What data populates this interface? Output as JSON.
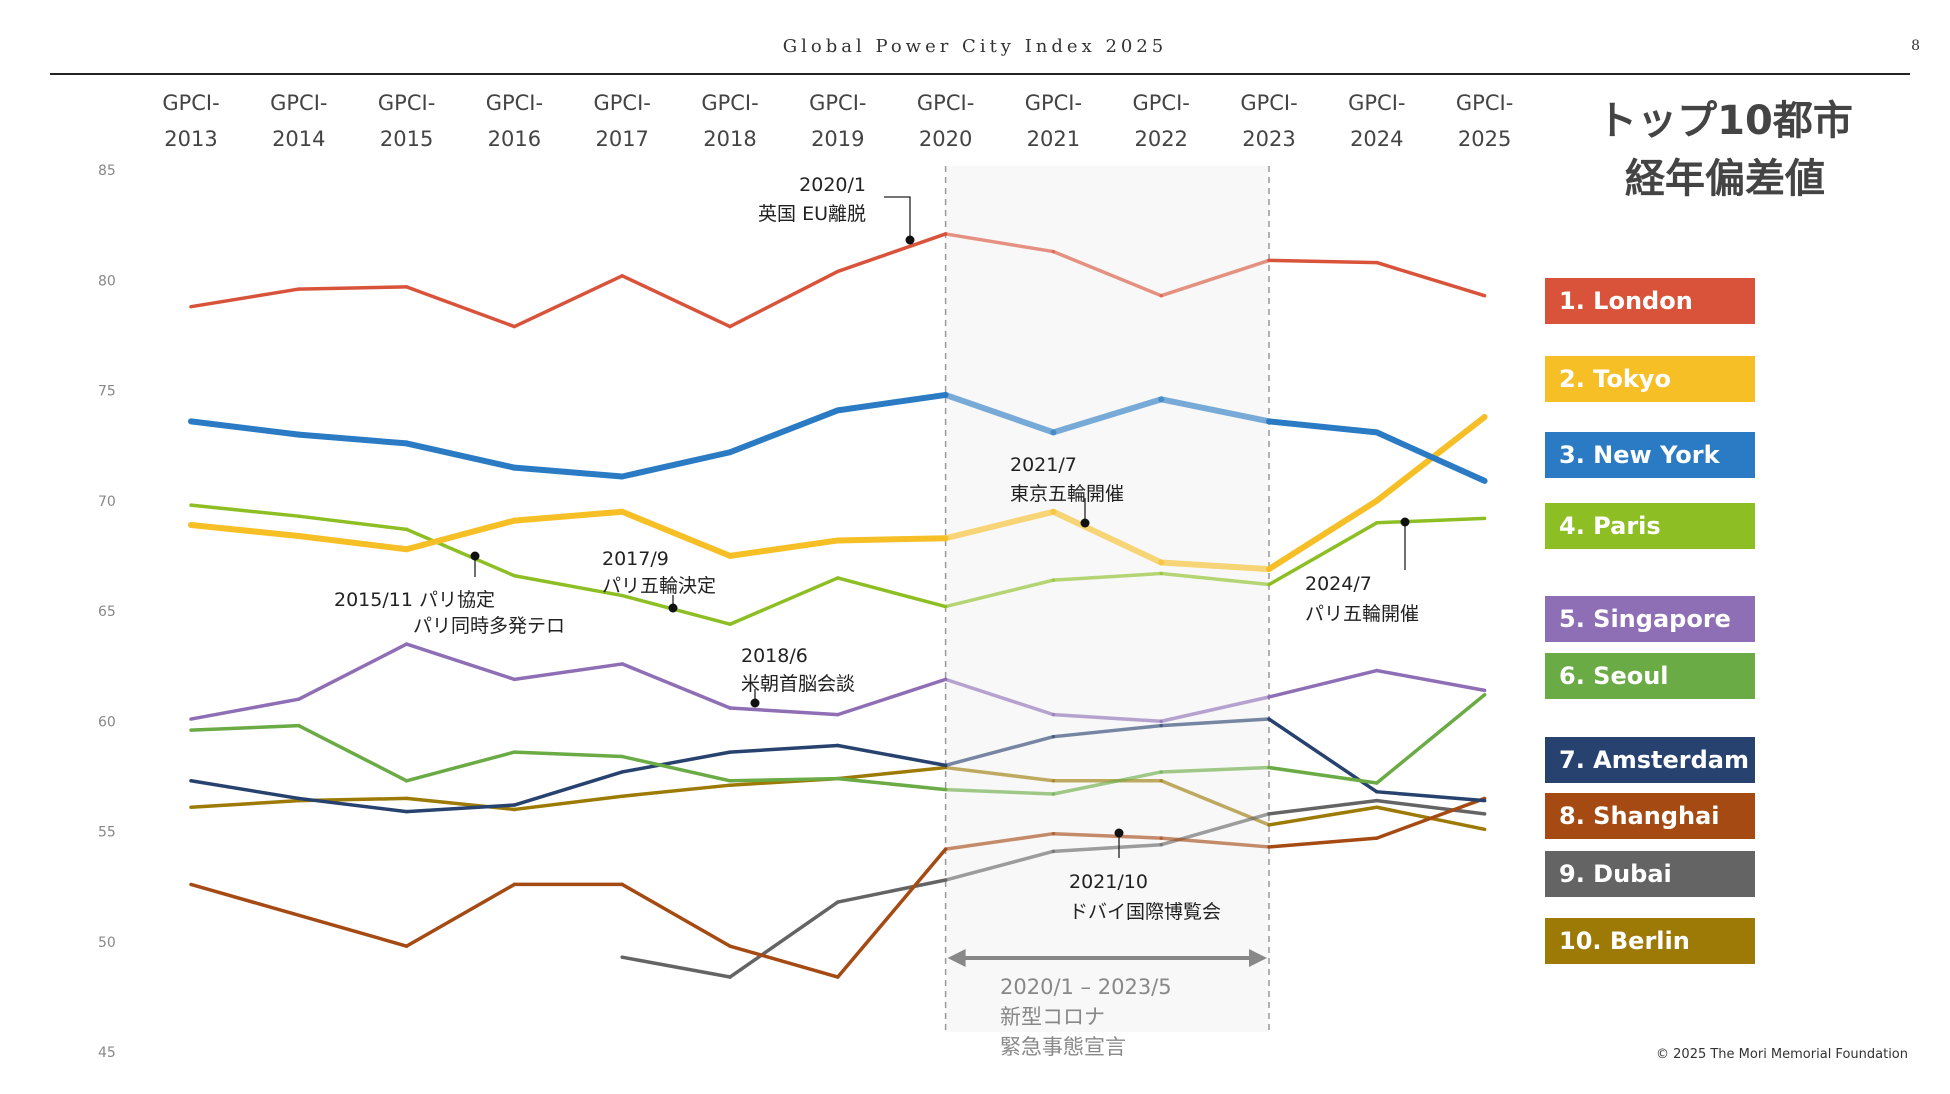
{
  "header": {
    "title": "Global Power City Index 2025",
    "page_number": "8"
  },
  "chart_title": {
    "line1": "トップ10都市",
    "line2": "経年偏差値"
  },
  "copyright": "© 2025 The Mori Memorial Foundation",
  "chart_data": {
    "type": "line",
    "x": [
      "GPCI-\n2013",
      "GPCI-\n2014",
      "GPCI-\n2015",
      "GPCI-\n2016",
      "GPCI-\n2017",
      "GPCI-\n2018",
      "GPCI-\n2019",
      "GPCI-\n2020",
      "GPCI-\n2021",
      "GPCI-\n2022",
      "GPCI-\n2023",
      "GPCI-\n2024",
      "GPCI-\n2025"
    ],
    "x_top_labels": [
      "GPCI-",
      "GPCI-",
      "GPCI-",
      "GPCI-",
      "GPCI-",
      "GPCI-",
      "GPCI-",
      "GPCI-",
      "GPCI-",
      "GPCI-",
      "GPCI-",
      "GPCI-",
      "GPCI-"
    ],
    "x_bottom_labels": [
      "2013",
      "2014",
      "2015",
      "2016",
      "2017",
      "2018",
      "2019",
      "2020",
      "2021",
      "2022",
      "2023",
      "2024",
      "2025"
    ],
    "ylim": [
      45,
      85
    ],
    "yticks": [
      "85",
      "80",
      "75",
      "70",
      "65",
      "60",
      "55",
      "50",
      "45"
    ],
    "series": [
      {
        "name": "1. London",
        "color": "#D9533A",
        "width": 3.5,
        "values": [
          78.8,
          79.6,
          79.7,
          77.9,
          80.2,
          77.9,
          80.4,
          82.1,
          81.3,
          79.3,
          80.9,
          80.8,
          79.3
        ]
      },
      {
        "name": "2. Tokyo",
        "color": "#F7BF26",
        "width": 6,
        "values": [
          68.9,
          68.4,
          67.8,
          69.1,
          69.5,
          67.5,
          68.2,
          68.3,
          69.5,
          67.2,
          66.9,
          70.0,
          73.8
        ]
      },
      {
        "name": "3. New York",
        "color": "#2B7BC4",
        "width": 6,
        "values": [
          73.6,
          73.0,
          72.6,
          71.5,
          71.1,
          72.2,
          74.1,
          74.8,
          73.1,
          74.6,
          73.6,
          73.1,
          70.9
        ]
      },
      {
        "name": "4. Paris",
        "color": "#8DBF24",
        "width": 3.5,
        "values": [
          69.8,
          69.3,
          68.7,
          66.6,
          65.7,
          64.4,
          66.5,
          65.2,
          66.4,
          66.7,
          66.2,
          69.0,
          69.2
        ]
      },
      {
        "name": "5. Singapore",
        "color": "#8E6EB5",
        "width": 3.5,
        "values": [
          60.1,
          61.0,
          63.5,
          61.9,
          62.6,
          60.6,
          60.3,
          61.9,
          60.3,
          60.0,
          61.1,
          62.3,
          61.4
        ]
      },
      {
        "name": "6. Seoul",
        "color": "#6AAB45",
        "width": 3.5,
        "values": [
          59.6,
          59.8,
          57.3,
          58.6,
          58.4,
          57.3,
          57.4,
          56.9,
          56.7,
          57.7,
          57.9,
          57.2,
          61.2
        ]
      },
      {
        "name": "7. Amsterdam",
        "color": "#27426F",
        "width": 3.5,
        "values": [
          57.3,
          56.5,
          55.9,
          56.2,
          57.7,
          58.6,
          58.9,
          58.0,
          59.3,
          59.8,
          60.1,
          56.8,
          56.4
        ]
      },
      {
        "name": "8. Shanghai",
        "color": "#A44A12",
        "width": 3.5,
        "values": [
          52.6,
          null,
          49.8,
          52.6,
          52.6,
          49.8,
          48.4,
          54.2,
          54.9,
          54.7,
          54.3,
          54.7,
          56.5
        ]
      },
      {
        "name": "9. Dubai",
        "color": "#646464",
        "width": 3.5,
        "values": [
          null,
          null,
          null,
          null,
          49.3,
          48.4,
          51.8,
          52.8,
          54.1,
          54.4,
          55.8,
          56.4,
          55.8
        ]
      },
      {
        "name": "10. Berlin",
        "color": "#9C7A05",
        "width": 3.5,
        "values": [
          56.1,
          56.4,
          56.5,
          56.0,
          56.6,
          57.1,
          57.4,
          57.9,
          57.3,
          57.3,
          55.3,
          56.1,
          55.1
        ]
      }
    ],
    "annotations": [
      {
        "id": "brexit",
        "lines": [
          "2020/1",
          "英国 EU離脱"
        ]
      },
      {
        "id": "tokyo-olympics",
        "lines": [
          "2021/7",
          "東京五輪開催"
        ]
      },
      {
        "id": "paris-agreement",
        "lines": [
          "2015/11 パリ協定",
          "パリ同時多発テロ"
        ]
      },
      {
        "id": "paris-olympics-decision",
        "lines": [
          "2017/9",
          "パリ五輪決定"
        ]
      },
      {
        "id": "summit",
        "lines": [
          "2018/6",
          "米朝首脳会談"
        ]
      },
      {
        "id": "paris-olympics",
        "lines": [
          "2024/7",
          "パリ五輪開催"
        ]
      },
      {
        "id": "dubai-expo",
        "lines": [
          "2021/10",
          "ドバイ国際博覧会"
        ]
      }
    ],
    "covid_period": {
      "start": "GPCI-2020",
      "end": "GPCI-2023",
      "lines": [
        "2020/1 – 2023/5",
        "新型コロナ",
        "緊急事態宣言"
      ]
    }
  }
}
